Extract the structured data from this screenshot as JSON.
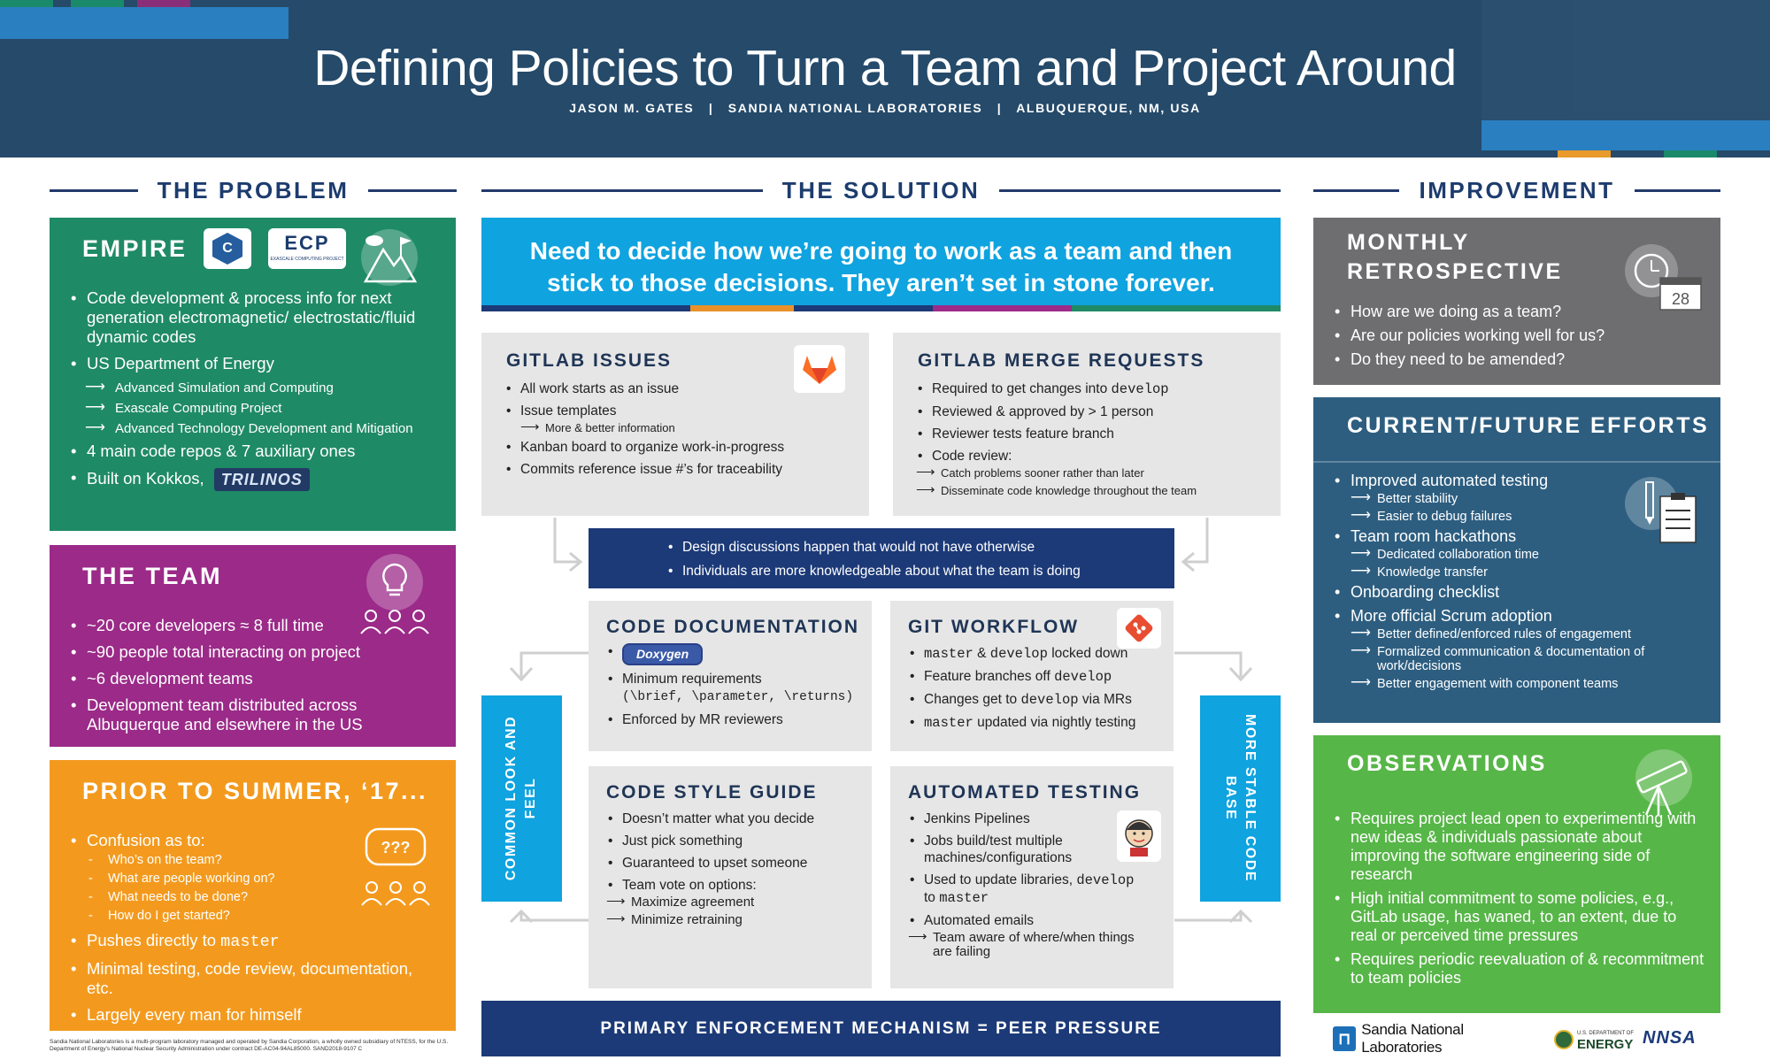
{
  "header": {
    "title": "Defining Policies to Turn a Team and Project Around",
    "subtitle": "JASON M. GATES   |   SANDIA NATIONAL LABORATORIES   |   ALBUQUERQUE, NM, USA"
  },
  "sections": {
    "problem": "THE PROBLEM",
    "solution": "THE SOLUTION",
    "improvement": "IMPROVEMENT"
  },
  "empire": {
    "title": "EMPIRE",
    "ecp_logo": "ECP",
    "ecp_logo_small": "EXASCALE COMPUTING PROJECT",
    "items": [
      "Code development & process info for next generation electromagnetic/ electrostatic/fluid dynamic codes",
      "US Department of Energy",
      "4 main code repos & 7 auxiliary ones",
      "Built on Kokkos,"
    ],
    "doe_sub": [
      "Advanced Simulation and Computing",
      "Exascale Computing Project",
      "Advanced Technology Development and Mitigation"
    ],
    "trilinos": "TRILINOS"
  },
  "team": {
    "title": "THE TEAM",
    "items": [
      "~20 core developers ≈ 8 full time",
      "~90  people total interacting on project",
      "~6 development teams",
      "Development team distributed across Albuquerque and elsewhere in the US"
    ]
  },
  "prior": {
    "title": "PRIOR TO SUMMER, ‘17...",
    "confusion": "Confusion as to:",
    "questions": [
      "Who’s on the team?",
      "What are people working on?",
      "What needs to be done?",
      "How do I get started?"
    ],
    "pushes_prefix": "Pushes directly to ",
    "pushes_code": "master",
    "items": [
      "Minimal testing, code review, documentation, etc.",
      "Largely every man for himself"
    ],
    "bubble": "???"
  },
  "solution": {
    "banner": "Need to decide how we’re going to work as a team and then stick to those decisions. They aren’t set in stone forever.",
    "gitlab_issues": {
      "title": "GITLAB ISSUES",
      "items": [
        "All work starts as an issue",
        "Issue templates",
        "Kanban board to organize work-in-progress",
        "Commits reference issue #’s for traceability"
      ],
      "sub": "More & better information"
    },
    "merge_requests": {
      "title": "GITLAB MERGE REQUESTS",
      "item1_prefix": "Required to get changes into ",
      "item1_code": "develop",
      "items": [
        "Reviewed & approved by > 1 person",
        "Reviewer tests feature branch",
        "Code review:"
      ],
      "sub": [
        "Catch problems sooner rather than later",
        "Disseminate code knowledge throughout the team"
      ]
    },
    "center_box": [
      "Design discussions happen that would not have otherwise",
      "Individuals are more knowledgeable about what the team is doing"
    ],
    "doc": {
      "title": "CODE DOCUMENTATION",
      "doxygen": "Doxygen",
      "items": [
        "Minimum requirements",
        "(\\brief, \\parameter, \\returns)",
        "Enforced by MR reviewers"
      ]
    },
    "git": {
      "title": "GIT WORKFLOW",
      "item1_code_a": "master",
      "item1_mid": " & ",
      "item1_code_b": "develop",
      "item1_end": " locked down",
      "item2_prefix": "Feature branches off ",
      "item2_code": "develop",
      "item3_prefix": "Changes get to ",
      "item3_code": "develop",
      "item3_end": " via MRs",
      "item4_code": "master",
      "item4_end": " updated via nightly testing"
    },
    "style": {
      "title": "CODE STYLE GUIDE",
      "items": [
        "Doesn’t matter what you decide",
        "Just pick something",
        "Guaranteed to upset someone",
        "Team vote on options:"
      ],
      "sub": [
        "Maximize agreement",
        "Minimize retraining"
      ]
    },
    "testing": {
      "title": "AUTOMATED TESTING",
      "items": [
        "Jenkins Pipelines",
        "Jobs build/test multiple machines/configurations"
      ],
      "item3_prefix": "Used to update libraries, ",
      "item3_code": "develop",
      "item3_mid": " to ",
      "item3_code_b": "master",
      "item4": "Automated emails",
      "sub": "Team aware of where/when things are failing"
    },
    "left_side": "COMMON LOOK AND FEEL",
    "right_side": "MORE STABLE CODE BASE",
    "bottom": "PRIMARY ENFORCEMENT MECHANISM = PEER PRESSURE"
  },
  "retro": {
    "title": "MONTHLY RETROSPECTIVE",
    "items": [
      "How are we doing as a team?",
      "Are our policies working well for us?",
      "Do they need to be amended?"
    ],
    "calendar_day": "28"
  },
  "efforts": {
    "title": "CURRENT/FUTURE EFFORTS",
    "g1": "Improved automated testing",
    "g1_sub": [
      "Better stability",
      "Easier to debug failures"
    ],
    "g2": "Team room hackathons",
    "g2_sub": [
      "Dedicated collaboration time",
      "Knowledge transfer"
    ],
    "g3": "Onboarding checklist",
    "g4": "More official Scrum adoption",
    "g4_sub": [
      "Better defined/enforced rules of engagement",
      "Formalized communication & documentation of work/decisions",
      "Better engagement with component teams"
    ]
  },
  "observations": {
    "title": "OBSERVATIONS",
    "items": [
      "Requires project lead open to experimenting with new ideas & individuals passionate about improving the software engineering side of research",
      "High initial commitment to some policies, e.g., GitLab usage, has waned, to an extent, due to real or perceived time pressures",
      "Requires periodic reevaluation of & recommitment to team policies"
    ]
  },
  "logos": {
    "sandia": "Sandia National Laboratories",
    "energy_small": "U.S. DEPARTMENT OF",
    "energy": "ENERGY",
    "nnsa": "NNSA"
  },
  "footnote": "Sandia National Laboratories is a multi-program laboratory managed and operated by Sandia Corporation, a wholly owned subsidiary of NTESS, for the U.S. Department of Energy’s National Nuclear Security Administration under contract DE-AC04-94AL85000. SAND2018-9107 C",
  "colors": {
    "header": "#254a6a",
    "empire": "#1f8a66",
    "team": "#9b2a88",
    "prior": "#f39a1e",
    "banner": "#0fa3df",
    "retro": "#6e6e70",
    "efforts": "#2d5e80",
    "observations": "#57b648",
    "navy": "#1c3a78"
  }
}
